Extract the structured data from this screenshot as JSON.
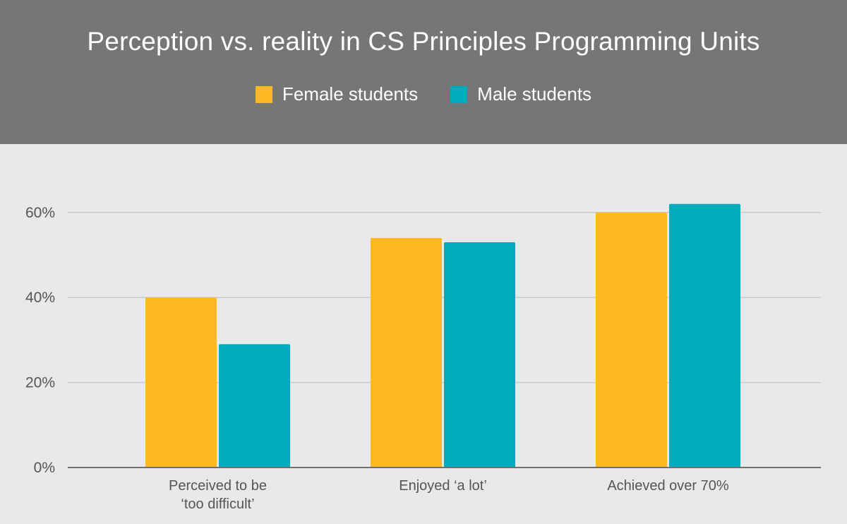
{
  "chart_data": {
    "type": "bar",
    "title": "Perception vs. reality in CS Principles Programming Units",
    "categories": [
      [
        "Perceived to be",
        "‘too difficult’"
      ],
      [
        "Enjoyed ‘a lot’"
      ],
      [
        "Achieved over 70%"
      ]
    ],
    "series": [
      {
        "name": "Female students",
        "color": "#fdb921",
        "values": [
          40,
          54,
          60
        ]
      },
      {
        "name": "Male students",
        "color": "#00abbd",
        "values": [
          29,
          53,
          62
        ]
      }
    ],
    "yticks": [
      0,
      20,
      40,
      60
    ],
    "ytick_labels": [
      "0%",
      "20%",
      "40%",
      "60%"
    ],
    "ylim": [
      0,
      70
    ],
    "xlabel": "",
    "ylabel": "",
    "grid": true,
    "legend": "top-center"
  }
}
